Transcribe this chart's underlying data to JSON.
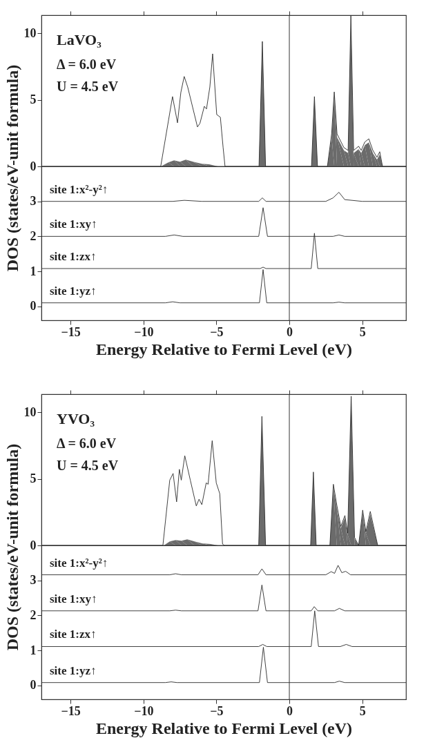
{
  "chart_data": [
    {
      "type": "line",
      "ylabel": "DOS (states/eV-unit formula)",
      "annotations": [
        "LaVO₃",
        "Δ = 6.0 eV",
        "U = 4.5 eV"
      ],
      "xlim": [
        -17,
        8
      ],
      "xticks": [
        -15,
        -10,
        -5,
        0,
        5
      ],
      "ylim": [
        0,
        11.35
      ],
      "yticks": [
        0,
        5,
        10
      ],
      "tick_labels": "y",
      "series": [
        {
          "type": "area",
          "color": "#6b6b6b",
          "x": [
            -17,
            -8.8,
            -8.3,
            -7.9,
            -7.5,
            -7.1,
            -6.6,
            -6.0,
            -5.5,
            -4.9,
            -2.08,
            -1.85,
            -1.63,
            1.52,
            1.72,
            1.93,
            2.61,
            2.9,
            3.08,
            3.27,
            3.74,
            4.03,
            4.22,
            4.41,
            4.75,
            4.93,
            5.17,
            5.45,
            5.73,
            6.01,
            6.2,
            6.39,
            8
          ],
          "values": [
            0,
            0,
            0.3,
            0.45,
            0.35,
            0.5,
            0.35,
            0.2,
            0.15,
            0,
            0,
            9.2,
            0,
            0,
            5.1,
            0,
            0,
            2.2,
            5.3,
            2.2,
            1.2,
            1.0,
            11.0,
            1.0,
            1.3,
            1.0,
            1.6,
            1.8,
            1.0,
            0.5,
            0.9,
            0,
            0
          ]
        },
        {
          "color": "#2b2b2b",
          "x": [
            -17,
            -8.82,
            -8.01,
            -7.67,
            -7.44,
            -7.21,
            -6.97,
            -6.3,
            -6.13,
            -5.83,
            -5.68,
            -5.45,
            -5.26,
            -4.98,
            -4.73,
            -4.54,
            -4.41,
            -2.08,
            -1.85,
            -1.63,
            1.52,
            1.72,
            1.93,
            2.61,
            2.9,
            3.08,
            3.27,
            3.74,
            4.03,
            4.22,
            4.41,
            4.75,
            4.93,
            5.17,
            5.45,
            5.73,
            6.01,
            6.2,
            6.39,
            8
          ],
          "values": [
            0,
            0,
            5.24,
            3.27,
            5.55,
            6.75,
            5.96,
            2.96,
            3.23,
            4.51,
            4.31,
            5.96,
            8.45,
            3.89,
            3.69,
            1.41,
            0,
            0,
            9.38,
            0,
            0,
            5.24,
            0,
            0,
            2.44,
            5.59,
            2.44,
            1.41,
            1.2,
            11.3,
            1.2,
            1.51,
            1.2,
            1.82,
            2.07,
            1.2,
            0.68,
            1.1,
            0,
            0
          ]
        }
      ]
    },
    {
      "type": "line",
      "xlabel": "Energy Relative to Fermi Level (eV)",
      "xlim": [
        -17,
        8
      ],
      "xticks": [
        -15,
        -10,
        -5,
        0,
        5
      ],
      "ylim": [
        -0.4,
        4.0
      ],
      "yticks": [
        0,
        1,
        2,
        3
      ],
      "ref_lines": [
        {
          "axis": "x",
          "value": 0,
          "color": "#333333"
        }
      ],
      "series": [
        {
          "name": "site 1:x²-y²↑",
          "color": "#2b2b2b",
          "x": [
            -17,
            -8,
            -7.2,
            -6,
            -2.1,
            -1.85,
            -1.6,
            2.5,
            3.0,
            3.4,
            3.8,
            5,
            8
          ],
          "values": [
            3.0,
            3.0,
            3.03,
            3.0,
            3.0,
            3.1,
            3.0,
            3.0,
            3.1,
            3.26,
            3.05,
            3.0,
            3.0
          ]
        },
        {
          "name": "site 1:xy↑",
          "color": "#2b2b2b",
          "x": [
            -17,
            -8.5,
            -7.9,
            -7.3,
            -2.1,
            -1.8,
            -1.5,
            3.0,
            3.4,
            3.8,
            8
          ],
          "values": [
            2.0,
            2.0,
            2.04,
            2.0,
            2.0,
            2.82,
            2.0,
            2.0,
            2.04,
            2.0,
            2.0
          ]
        },
        {
          "name": "site 1:zx↑",
          "color": "#2b2b2b",
          "x": [
            -17,
            -2.0,
            -1.8,
            -1.6,
            1.5,
            1.72,
            1.95,
            8
          ],
          "values": [
            1.08,
            1.08,
            1.12,
            1.08,
            1.08,
            2.09,
            1.08,
            1.08
          ]
        },
        {
          "name": "site 1:yz↑",
          "color": "#2b2b2b",
          "x": [
            -17,
            -8.5,
            -8.0,
            -7.5,
            -2.05,
            -1.8,
            -1.55,
            3.0,
            3.4,
            3.8,
            8
          ],
          "values": [
            0.1,
            0.1,
            0.13,
            0.1,
            0.1,
            1.05,
            0.1,
            0.1,
            0.12,
            0.1,
            0.1
          ]
        }
      ]
    },
    {
      "type": "line",
      "ylabel": "DOS (states/eV-unit formula)",
      "annotations": [
        "YVO₃",
        "Δ = 6.0 eV",
        "U = 4.5 eV"
      ],
      "xlim": [
        -17,
        8
      ],
      "xticks": [
        -15,
        -10,
        -5,
        0,
        5
      ],
      "ylim": [
        0,
        11.35
      ],
      "yticks": [
        0,
        5,
        10
      ],
      "tick_labels": "y",
      "series": [
        {
          "type": "area",
          "color": "#6b6b6b",
          "x": [
            -17,
            -8.6,
            -8.2,
            -7.8,
            -7.4,
            -7.0,
            -6.5,
            -6.0,
            -5.4,
            -4.9,
            -2.1,
            -1.88,
            -1.63,
            1.46,
            1.65,
            1.84,
            2.78,
            3.02,
            3.25,
            3.53,
            3.81,
            4.0,
            4.24,
            4.47,
            4.75,
            5.03,
            5.25,
            5.55,
            6.06,
            8
          ],
          "values": [
            0,
            0,
            0.3,
            0.4,
            0.35,
            0.45,
            0.3,
            0.15,
            0.1,
            0,
            0,
            9.5,
            0,
            0,
            5.35,
            0,
            0,
            4.4,
            2.85,
            1.3,
            2.1,
            0.8,
            10.9,
            0.5,
            0,
            2.45,
            0.9,
            2.35,
            0,
            0
          ]
        },
        {
          "color": "#2b2b2b",
          "x": [
            -17,
            -8.67,
            -8.2,
            -7.97,
            -7.73,
            -7.54,
            -7.41,
            -7.17,
            -6.79,
            -6.38,
            -6.19,
            -6.0,
            -5.7,
            -5.57,
            -5.29,
            -5.01,
            -4.77,
            -4.58,
            -4.45,
            -2.1,
            -1.88,
            -1.63,
            1.46,
            1.65,
            1.84,
            2.78,
            3.02,
            3.25,
            3.53,
            3.81,
            4.0,
            4.24,
            4.47,
            4.75,
            5.03,
            5.25,
            5.55,
            6.06,
            8
          ],
          "values": [
            0,
            0,
            4.9,
            5.4,
            3.27,
            5.71,
            4.9,
            6.73,
            4.9,
            2.96,
            3.47,
            3.06,
            4.69,
            4.59,
            7.86,
            4.69,
            3.88,
            0.1,
            0,
            0,
            9.69,
            0,
            0,
            5.51,
            0,
            0,
            4.59,
            3.06,
            1.43,
            2.24,
            0.92,
            11.2,
            0.6,
            0,
            2.65,
            1.02,
            2.55,
            0,
            0
          ]
        }
      ]
    },
    {
      "type": "line",
      "xlabel": "Energy Relative to Fermi Level (eV)",
      "xlim": [
        -17,
        8
      ],
      "xticks": [
        -15,
        -10,
        -5,
        0,
        5
      ],
      "ylim": [
        -0.4,
        4.0
      ],
      "yticks": [
        0,
        1,
        2,
        3
      ],
      "ref_lines": [
        {
          "axis": "x",
          "value": 0,
          "color": "#333333"
        }
      ],
      "series": [
        {
          "name": "site 1:x²-y²↑",
          "color": "#2b2b2b",
          "x": [
            -17,
            -8.2,
            -7.8,
            -7.4,
            -2.15,
            -1.88,
            -1.6,
            2.5,
            2.87,
            3.1,
            3.34,
            3.6,
            3.86,
            4.2,
            8
          ],
          "values": [
            3.16,
            3.16,
            3.19,
            3.16,
            3.16,
            3.33,
            3.16,
            3.16,
            3.25,
            3.2,
            3.43,
            3.22,
            3.26,
            3.16,
            3.16
          ]
        },
        {
          "name": "site 1:xy↑",
          "color": "#2b2b2b",
          "x": [
            -17,
            -8.2,
            -7.8,
            -7.4,
            -2.15,
            -1.88,
            -1.6,
            1.5,
            1.71,
            1.95,
            3.1,
            3.43,
            3.8,
            8
          ],
          "values": [
            2.13,
            2.13,
            2.15,
            2.13,
            2.13,
            2.87,
            2.13,
            2.13,
            2.25,
            2.13,
            2.13,
            2.2,
            2.13,
            2.13
          ]
        },
        {
          "name": "site 1:zx↑",
          "color": "#2b2b2b",
          "x": [
            -17,
            -2.1,
            -1.82,
            -1.55,
            1.5,
            1.74,
            2.0,
            3.5,
            3.9,
            4.3,
            8
          ],
          "values": [
            1.11,
            1.11,
            1.17,
            1.11,
            1.11,
            2.13,
            1.11,
            1.11,
            1.17,
            1.11,
            1.11
          ]
        },
        {
          "name": "site 1:yz↑",
          "color": "#2b2b2b",
          "x": [
            -17,
            -8.5,
            -8.1,
            -7.7,
            -2.05,
            -1.78,
            -1.5,
            3.1,
            3.43,
            3.8,
            8
          ],
          "values": [
            0.08,
            0.08,
            0.1,
            0.08,
            0.08,
            1.09,
            0.08,
            0.08,
            0.12,
            0.08,
            0.08
          ]
        }
      ]
    }
  ]
}
